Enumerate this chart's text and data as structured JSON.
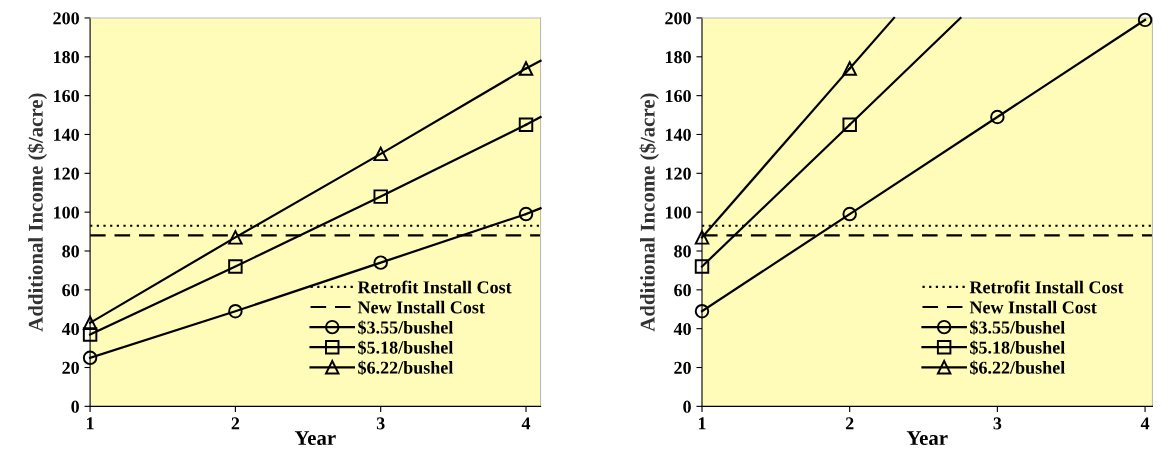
{
  "chart_data": [
    {
      "type": "line",
      "xlabel": "Year",
      "ylabel": "Additional Income ($/acre)",
      "xlim": [
        1,
        4.1
      ],
      "xticks": [
        1,
        2,
        3,
        4
      ],
      "ylim": [
        0,
        200
      ],
      "yticks": [
        0,
        20,
        40,
        60,
        80,
        100,
        120,
        140,
        160,
        180,
        200
      ],
      "grid": false,
      "legend": "bottom right",
      "line_style": "solid",
      "ref_lines": [
        {
          "axis": "y",
          "value": 93,
          "label": "Retrofit Install Cost",
          "color": "#000000",
          "line_style": "dotted"
        },
        {
          "axis": "y",
          "value": 88,
          "label": "New Install Cost",
          "color": "#000000",
          "line_style": "dashed"
        }
      ],
      "series": [
        {
          "name": "$3.55/bushel",
          "color": "#000000",
          "marker": "circle",
          "x": [
            1,
            2,
            3,
            4
          ],
          "values": [
            25,
            49,
            74,
            99
          ]
        },
        {
          "name": "$5.18/bushel",
          "color": "#000000",
          "marker": "square",
          "x": [
            1,
            2,
            3,
            4
          ],
          "values": [
            37,
            72,
            108,
            145
          ]
        },
        {
          "name": "$6.22/bushel",
          "color": "#000000",
          "marker": "triangle",
          "x": [
            1,
            2,
            3,
            4
          ],
          "values": [
            43,
            87,
            130,
            174
          ]
        },
        {
          "color": "#000000",
          "marker": "none",
          "x": [
            4,
            4.1
          ],
          "values": [
            99,
            102
          ]
        },
        {
          "color": "#000000",
          "marker": "none",
          "x": [
            4,
            4.1
          ],
          "values": [
            145,
            149
          ]
        },
        {
          "color": "#000000",
          "marker": "none",
          "x": [
            4,
            4.1
          ],
          "values": [
            174,
            178
          ]
        }
      ]
    },
    {
      "type": "line",
      "xlabel": "Year",
      "ylabel": "Additional Income ($/acre)",
      "xlim": [
        1,
        4.05
      ],
      "xticks": [
        1,
        2,
        3,
        4
      ],
      "ylim": [
        0,
        200
      ],
      "yticks": [
        0,
        20,
        40,
        60,
        80,
        100,
        120,
        140,
        160,
        180,
        200
      ],
      "grid": false,
      "legend": "bottom right",
      "line_style": "solid",
      "ref_lines": [
        {
          "axis": "y",
          "value": 93,
          "label": "Retrofit Install Cost",
          "color": "#000000",
          "line_style": "dotted"
        },
        {
          "axis": "y",
          "value": 88,
          "label": "New Install Cost",
          "color": "#000000",
          "line_style": "dashed"
        }
      ],
      "series": [
        {
          "name": "$3.55/bushel",
          "color": "#000000",
          "marker": "circle",
          "x": [
            1,
            2,
            3,
            4
          ],
          "values": [
            49,
            99,
            149,
            199
          ]
        },
        {
          "name": "$5.18/bushel",
          "color": "#000000",
          "marker": "square",
          "x": [
            1,
            2
          ],
          "values": [
            72,
            145
          ]
        },
        {
          "name": "$6.22/bushel",
          "color": "#000000",
          "marker": "triangle",
          "x": [
            1,
            2
          ],
          "values": [
            87,
            174
          ]
        },
        {
          "color": "#000000",
          "marker": "none",
          "x": [
            2,
            2.75
          ],
          "values": [
            145,
            200
          ]
        },
        {
          "color": "#000000",
          "marker": "none",
          "x": [
            2,
            2.3
          ],
          "values": [
            174,
            200
          ]
        }
      ]
    }
  ]
}
